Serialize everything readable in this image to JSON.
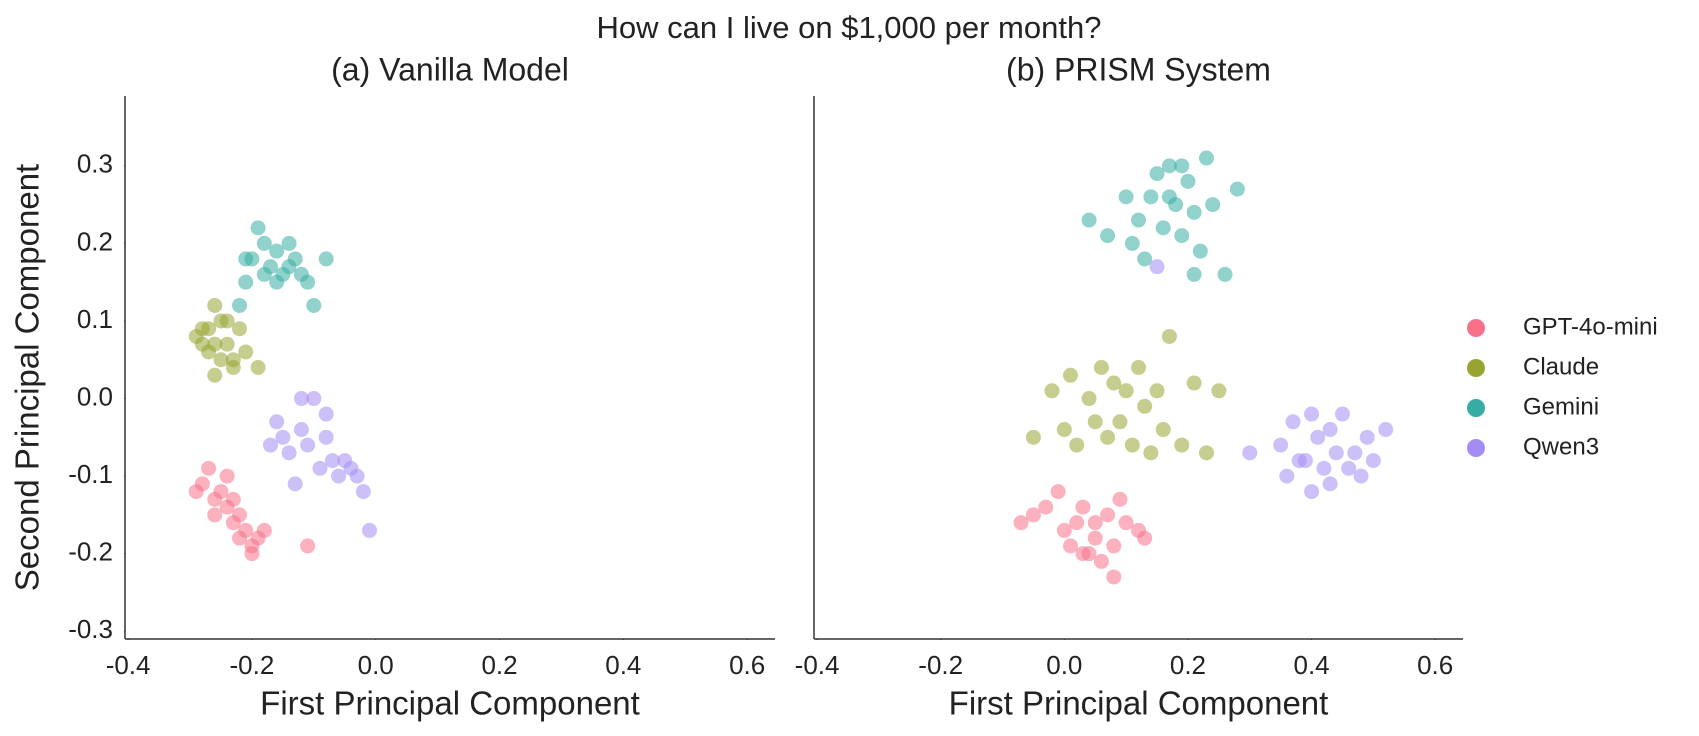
{
  "title": "How can I live on $1,000 per month?",
  "legend_position": "right",
  "chart_data": [
    {
      "type": "scatter",
      "title": "(a) Vanilla Model",
      "x_label": "First Principal Component",
      "y_label": "Second Principal Component",
      "xlim": [
        -0.405,
        0.645
      ],
      "ylim": [
        -0.31,
        0.39
      ],
      "xticks": [
        -0.4,
        -0.2,
        {
          "value": 0,
          "label": "0.0"
        },
        0.2,
        0.4,
        0.6
      ],
      "yticks": [
        -0.3,
        -0.2,
        -0.1,
        {
          "value": 0,
          "label": "0.0"
        },
        0.1,
        0.2,
        0.3
      ],
      "series": [
        {
          "name": "GPT-4o-mini",
          "color": "#f77189",
          "x": [
            -0.29,
            -0.28,
            -0.27,
            -0.26,
            -0.25,
            -0.24,
            -0.23,
            -0.22,
            -0.21,
            -0.2,
            -0.19,
            -0.18,
            -0.22,
            -0.24,
            -0.26,
            -0.11,
            -0.2,
            -0.23
          ],
          "y": [
            -0.12,
            -0.11,
            -0.09,
            -0.13,
            -0.12,
            -0.14,
            -0.16,
            -0.15,
            -0.17,
            -0.19,
            -0.18,
            -0.17,
            -0.18,
            -0.1,
            -0.15,
            -0.19,
            -0.2,
            -0.13
          ]
        },
        {
          "name": "Claude",
          "color": "#97a431",
          "x": [
            -0.29,
            -0.28,
            -0.27,
            -0.26,
            -0.25,
            -0.24,
            -0.23,
            -0.22,
            -0.26,
            -0.25,
            -0.27,
            -0.24,
            -0.23,
            -0.21,
            -0.19,
            -0.28,
            -0.26
          ],
          "y": [
            0.08,
            0.07,
            0.09,
            0.12,
            0.1,
            0.07,
            0.05,
            0.09,
            0.03,
            0.05,
            0.06,
            0.1,
            0.04,
            0.06,
            0.04,
            0.09,
            0.07
          ]
        },
        {
          "name": "Gemini",
          "color": "#36ada4",
          "x": [
            -0.22,
            -0.21,
            -0.2,
            -0.19,
            -0.18,
            -0.17,
            -0.16,
            -0.15,
            -0.14,
            -0.13,
            -0.12,
            -0.11,
            -0.1,
            -0.08,
            -0.16,
            -0.18,
            -0.14,
            -0.21
          ],
          "y": [
            0.12,
            0.15,
            0.18,
            0.22,
            0.2,
            0.17,
            0.19,
            0.16,
            0.2,
            0.18,
            0.16,
            0.15,
            0.12,
            0.18,
            0.15,
            0.16,
            0.17,
            0.18
          ]
        },
        {
          "name": "Qwen3",
          "color": "#a48cf4",
          "x": [
            -0.17,
            -0.16,
            -0.15,
            -0.14,
            -0.13,
            -0.12,
            -0.11,
            -0.1,
            -0.09,
            -0.08,
            -0.07,
            -0.06,
            -0.05,
            -0.04,
            -0.03,
            -0.02,
            -0.01,
            -0.08,
            -0.12
          ],
          "y": [
            -0.06,
            -0.03,
            -0.05,
            -0.07,
            -0.11,
            -0.04,
            -0.06,
            0,
            -0.09,
            -0.02,
            -0.08,
            -0.1,
            -0.08,
            -0.09,
            -0.1,
            -0.12,
            -0.17,
            -0.05,
            0
          ]
        }
      ]
    },
    {
      "type": "scatter",
      "title": "(b) PRISM System",
      "x_label": "First Principal Component",
      "xlim": [
        -0.405,
        0.645
      ],
      "ylim": [
        -0.31,
        0.39
      ],
      "xticks": [
        -0.4,
        -0.2,
        {
          "value": 0,
          "label": "0.0"
        },
        0.2,
        0.4,
        0.6
      ],
      "series": [
        {
          "name": "GPT-4o-mini",
          "color": "#f77189",
          "x": [
            -0.07,
            -0.05,
            -0.03,
            -0.01,
            0,
            0.01,
            0.02,
            0.03,
            0.04,
            0.05,
            0.06,
            0.07,
            0.08,
            0.09,
            0.1,
            0.12,
            0.13,
            0.08,
            0.03,
            0.05
          ],
          "y": [
            -0.16,
            -0.15,
            -0.14,
            -0.12,
            -0.17,
            -0.19,
            -0.16,
            -0.14,
            -0.2,
            -0.18,
            -0.21,
            -0.15,
            -0.19,
            -0.13,
            -0.16,
            -0.17,
            -0.18,
            -0.23,
            -0.2,
            -0.16
          ]
        },
        {
          "name": "Claude",
          "color": "#97a431",
          "x": [
            -0.05,
            -0.02,
            0,
            0.01,
            0.02,
            0.04,
            0.05,
            0.06,
            0.07,
            0.08,
            0.09,
            0.1,
            0.11,
            0.12,
            0.13,
            0.14,
            0.15,
            0.16,
            0.17,
            0.19,
            0.21,
            0.23,
            0.25
          ],
          "y": [
            -0.05,
            0.01,
            -0.04,
            0.03,
            -0.06,
            0,
            -0.03,
            0.04,
            -0.05,
            0.02,
            -0.03,
            0.01,
            -0.06,
            0.04,
            -0.01,
            -0.07,
            0.01,
            -0.04,
            0.08,
            -0.06,
            0.02,
            -0.07,
            0.01
          ]
        },
        {
          "name": "Gemini",
          "color": "#36ada4",
          "x": [
            0.04,
            0.07,
            0.1,
            0.11,
            0.12,
            0.13,
            0.14,
            0.15,
            0.16,
            0.17,
            0.18,
            0.19,
            0.2,
            0.21,
            0.21,
            0.22,
            0.23,
            0.24,
            0.26,
            0.28,
            0.17,
            0.19
          ],
          "y": [
            0.23,
            0.21,
            0.26,
            0.2,
            0.23,
            0.18,
            0.26,
            0.29,
            0.22,
            0.3,
            0.25,
            0.21,
            0.28,
            0.16,
            0.24,
            0.19,
            0.31,
            0.25,
            0.16,
            0.27,
            0.26,
            0.3
          ]
        },
        {
          "name": "Qwen3",
          "color": "#a48cf4",
          "x": [
            0.15,
            0.3,
            0.35,
            0.36,
            0.37,
            0.38,
            0.39,
            0.4,
            0.41,
            0.42,
            0.43,
            0.43,
            0.44,
            0.45,
            0.46,
            0.47,
            0.48,
            0.49,
            0.5,
            0.52,
            0.4
          ],
          "y": [
            0.17,
            -0.07,
            -0.06,
            -0.1,
            -0.03,
            -0.08,
            -0.08,
            -0.02,
            -0.05,
            -0.09,
            -0.11,
            -0.04,
            -0.07,
            -0.02,
            -0.09,
            -0.07,
            -0.1,
            -0.05,
            -0.08,
            -0.04,
            -0.12
          ]
        }
      ]
    }
  ]
}
